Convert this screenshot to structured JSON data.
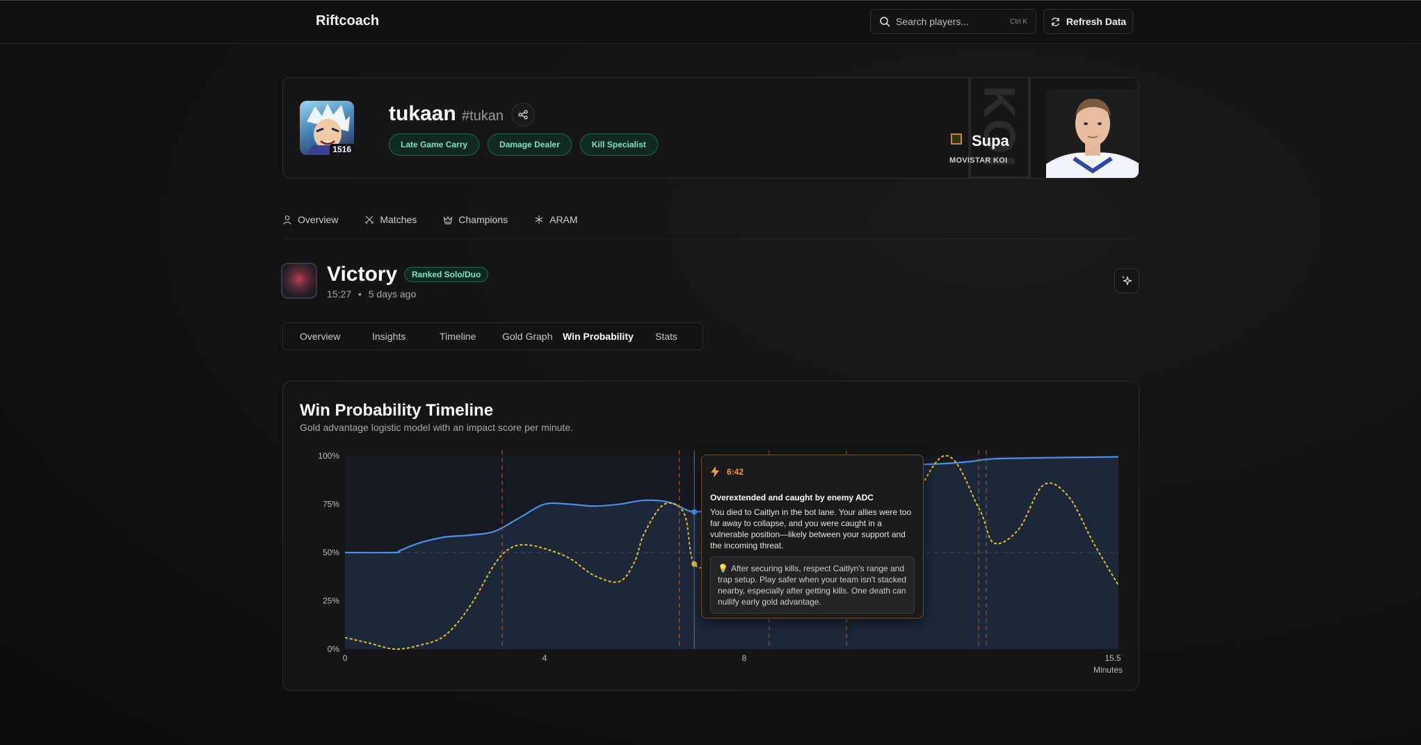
{
  "topbar": {
    "brand": "Riftcoach",
    "search_placeholder": "Search players...",
    "search_shortcut": "Ctrl K",
    "refresh_label": "Refresh Data"
  },
  "profile": {
    "name": "tukaan",
    "tag": "#tukan",
    "level": "1516",
    "badges": [
      "Late Game Carry",
      "Damage Dealer",
      "Kill Specialist"
    ],
    "pro": {
      "name": "Supa",
      "team": "MOVISTAR KOI"
    }
  },
  "nav": {
    "tabs": [
      {
        "label": "Overview",
        "icon": "user-icon"
      },
      {
        "label": "Matches",
        "icon": "crossed-swords-icon"
      },
      {
        "label": "Champions",
        "icon": "crown-icon"
      },
      {
        "label": "ARAM",
        "icon": "snowflake-icon"
      }
    ]
  },
  "match": {
    "result": "Victory",
    "queue": "Ranked Solo/Duo",
    "duration": "15:27",
    "separator": "•",
    "ago": "5 days ago",
    "tabs": [
      "Overview",
      "Insights",
      "Timeline",
      "Gold Graph",
      "Win Probability",
      "Stats"
    ],
    "active_tab": "Win Probability"
  },
  "card": {
    "title": "Win Probability Timeline",
    "subtitle": "Gold advantage logistic model with an impact score per minute."
  },
  "chart_data": {
    "type": "line",
    "xlim": [
      0,
      15.5
    ],
    "ylim": [
      0,
      100
    ],
    "y_ticks": [
      "0%",
      "25%",
      "50%",
      "75%",
      "100%"
    ],
    "y_tick_values": [
      0,
      25,
      50,
      75,
      100
    ],
    "x_ticks": [
      "0",
      "4",
      "8",
      "15.5"
    ],
    "x_tick_values": [
      0,
      4,
      8,
      15.5
    ],
    "xlabel": "Minutes",
    "reference_line": 50,
    "series": [
      {
        "color": "#4f8fe6",
        "style": "solid",
        "fill": true,
        "points": [
          [
            0,
            50
          ],
          [
            1,
            50
          ],
          [
            1.1,
            51
          ],
          [
            1.5,
            55
          ],
          [
            2,
            58
          ],
          [
            2.5,
            59
          ],
          [
            3,
            61
          ],
          [
            3.5,
            68
          ],
          [
            4,
            75
          ],
          [
            4.5,
            75
          ],
          [
            5,
            74
          ],
          [
            5.5,
            75
          ],
          [
            6,
            77
          ],
          [
            6.5,
            76
          ],
          [
            7,
            71
          ],
          [
            7.5,
            75
          ],
          [
            8,
            84
          ],
          [
            8.5,
            88
          ],
          [
            9,
            89
          ],
          [
            9.5,
            91
          ],
          [
            10,
            93
          ],
          [
            11,
            95
          ],
          [
            12,
            96
          ],
          [
            12.5,
            97
          ],
          [
            13,
            98.5
          ],
          [
            14,
            99
          ],
          [
            15.5,
            99.5
          ]
        ]
      },
      {
        "color": "#e9c21b",
        "style": "dashed",
        "fill": false,
        "points": [
          [
            0,
            6
          ],
          [
            0.5,
            3
          ],
          [
            1,
            0
          ],
          [
            1.5,
            2
          ],
          [
            2,
            7
          ],
          [
            2.5,
            22
          ],
          [
            3,
            44
          ],
          [
            3.3,
            52
          ],
          [
            3.6,
            54
          ],
          [
            4,
            52
          ],
          [
            4.5,
            47
          ],
          [
            5,
            38
          ],
          [
            5.5,
            35
          ],
          [
            5.8,
            45
          ],
          [
            6,
            60
          ],
          [
            6.4,
            75
          ],
          [
            6.8,
            70
          ],
          [
            7,
            44
          ],
          [
            7.5,
            44
          ],
          [
            8,
            44
          ],
          [
            9,
            48
          ],
          [
            10,
            48
          ],
          [
            11,
            60
          ],
          [
            12,
            100
          ],
          [
            12.7,
            73
          ],
          [
            13,
            55
          ],
          [
            13.5,
            62
          ],
          [
            14,
            85
          ],
          [
            14.5,
            79
          ],
          [
            15,
            55
          ],
          [
            15.5,
            33
          ]
        ]
      }
    ],
    "event_markers_minutes": [
      3.15,
      6.7,
      8.5,
      10.05,
      12.7,
      12.85
    ],
    "highlight": {
      "minute": 7,
      "win_prob": 71,
      "impact": 44,
      "color": "#f59a3b"
    },
    "tooltip": {
      "time": "6:42",
      "icon": "lightning-icon",
      "title": "Overextended and caught by enemy ADC",
      "body": "You died to Caitlyn in the bot lane. Your allies were too far away to collapse, and you were caught in a vulnerable position—likely between your support and the incoming threat.",
      "tip": "After securing kills, respect Caitlyn's range and trap setup. Play safer when your team isn't stacked nearby, especially after getting kills. One death can nullify early gold advantage."
    }
  }
}
